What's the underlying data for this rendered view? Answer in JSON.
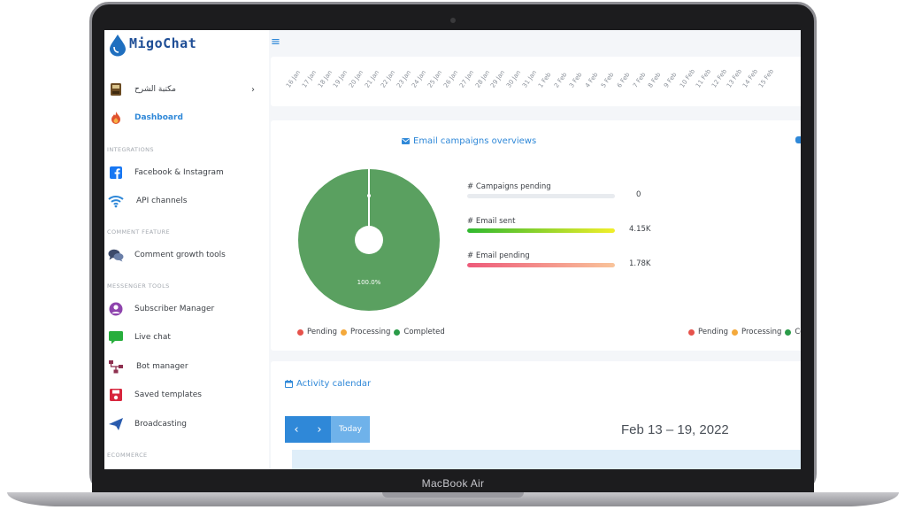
{
  "device": {
    "model_label": "MacBook Air"
  },
  "brand": {
    "name": "MigoChat"
  },
  "sidebar": {
    "items": [
      {
        "name": "explanation-library",
        "label": "مكتبة الشرح",
        "icon": "book-icon",
        "chevron": "›"
      },
      {
        "name": "dashboard",
        "label": "Dashboard",
        "icon": "fire-icon",
        "active": true
      },
      {
        "section": "INTEGRATIONS"
      },
      {
        "name": "facebook-instagram",
        "label": "Facebook & Instagram",
        "icon": "facebook-icon"
      },
      {
        "name": "api-channels",
        "label": "API channels",
        "icon": "wifi-icon"
      },
      {
        "section": "COMMENT FEATURE"
      },
      {
        "name": "comment-growth-tools",
        "label": "Comment growth tools",
        "icon": "comments-icon"
      },
      {
        "section": "MESSENGER TOOLS"
      },
      {
        "name": "subscriber-manager",
        "label": "Subscriber Manager",
        "icon": "user-circle-icon"
      },
      {
        "name": "live-chat",
        "label": "Live chat",
        "icon": "chat-bubble-icon"
      },
      {
        "name": "bot-manager",
        "label": "Bot manager",
        "icon": "sitemap-icon"
      },
      {
        "name": "saved-templates",
        "label": "Saved templates",
        "icon": "save-icon"
      },
      {
        "name": "broadcasting",
        "label": "Broadcasting",
        "icon": "paper-plane-icon"
      },
      {
        "section": "ECOMMERCE"
      }
    ]
  },
  "header": {
    "menu_icon": "hamburger-icon",
    "menu_glyph": "≡"
  },
  "timeline": {
    "ticks": [
      "16 Jan",
      "17 Jan",
      "18 Jan",
      "19 Jan",
      "20 Jan",
      "21 Jan",
      "22 Jan",
      "23 Jan",
      "24 Jan",
      "25 Jan",
      "26 Jan",
      "27 Jan",
      "28 Jan",
      "29 Jan",
      "30 Jan",
      "31 Jan",
      "1 Feb",
      "2 Feb",
      "3 Feb",
      "4 Feb",
      "5 Feb",
      "6 Feb",
      "7 Feb",
      "8 Feb",
      "9 Feb",
      "10 Feb",
      "11 Feb",
      "12 Feb",
      "13 Feb",
      "14 Feb",
      "15 Feb"
    ]
  },
  "email_campaigns": {
    "title": "Email campaigns overviews",
    "pie_label": "100.0%",
    "stats": [
      {
        "label": "# Campaigns pending",
        "value": "0",
        "fill_pct": 0,
        "gradient": [
          "#e8ebef",
          "#e8ebef"
        ]
      },
      {
        "label": "# Email sent",
        "value": "4.15K",
        "fill_pct": 100,
        "gradient": [
          "#2fb82f",
          "#f2ef2a"
        ]
      },
      {
        "label": "# Email pending",
        "value": "1.78K",
        "fill_pct": 100,
        "gradient": [
          "#ee5a7a",
          "#f9c49a"
        ]
      }
    ],
    "legend": [
      {
        "label": "Pending",
        "color": "#e6524b"
      },
      {
        "label": "Processing",
        "color": "#f4a93b"
      },
      {
        "label": "Completed",
        "color": "#2a9b48"
      }
    ],
    "legend_right": [
      {
        "label": "Pending",
        "color": "#e6524b"
      },
      {
        "label": "Processing",
        "color": "#f4a93b"
      },
      {
        "label": "Co",
        "color": "#2a9b48"
      }
    ],
    "colors": {
      "pie": "#5aa060",
      "accent": "#2f88d8"
    }
  },
  "activity_calendar": {
    "title": "Activity calendar",
    "prev_glyph": "‹",
    "next_glyph": "›",
    "today_label": "Today",
    "range": "Feb 13 – 19, 2022"
  }
}
